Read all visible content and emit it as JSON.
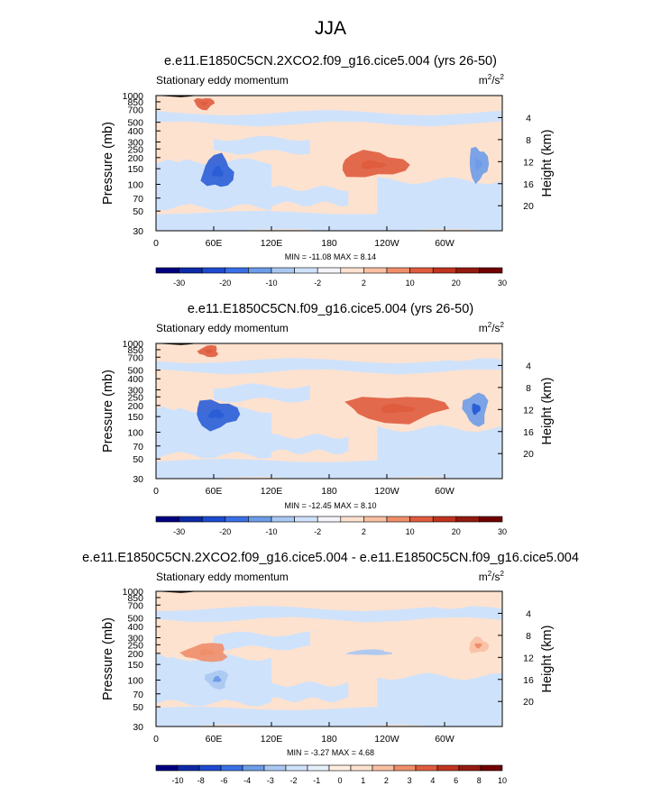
{
  "page_title": "JJA",
  "colors": {
    "light_blue": "#cfe2fb",
    "mid_blue": "#a9c8f2",
    "blue": "#6d9ce8",
    "dark_blue": "#2b5ed6",
    "light_orange": "#fde2cf",
    "mid_orange": "#f9c0a2",
    "orange": "#f08e6a",
    "dark_orange": "#e05c3e",
    "topography": "#000000"
  },
  "chart_data": [
    {
      "type": "heatmap",
      "title": "e.e11.E1850C5CN.2XCO2.f09_g16.cice5.004 (yrs 26-50)",
      "variable": "Stationary eddy momentum",
      "units": "m²/s²",
      "units_base": "m",
      "units_num_exp": "2",
      "units_mid": "/s",
      "units_den_exp": "2",
      "ylabel": "Pressure (mb)",
      "ylabel_right": "Height (km)",
      "x_ticks": [
        "0",
        "60E",
        "120E",
        "180",
        "120W",
        "60W"
      ],
      "x_tick_lon": [
        0,
        60,
        120,
        180,
        240,
        300
      ],
      "xlim": [
        0,
        360
      ],
      "y_ticks": [
        "30",
        "50",
        "70",
        "100",
        "150",
        "200",
        "250",
        "300",
        "400",
        "500",
        "700",
        "850",
        "1000"
      ],
      "y_tick_p": [
        30,
        50,
        70,
        100,
        150,
        200,
        250,
        300,
        400,
        500,
        700,
        850,
        1000
      ],
      "ylim_mb": [
        1000,
        30
      ],
      "height_ticks": [
        "4",
        "8",
        "12",
        "16",
        "20"
      ],
      "height_km": [
        4,
        8,
        12,
        16,
        20
      ],
      "min_max": "MIN = -11.08  MAX =  8.14",
      "min": -11.08,
      "max": 8.14,
      "colorbar_levels": [
        "-30",
        "-20",
        "-10",
        "-2",
        "2",
        "10",
        "20",
        "30"
      ],
      "colorbar_colors": [
        "#000080",
        "#0d2ba8",
        "#1d4bd0",
        "#3a70e6",
        "#6d9ce8",
        "#a9c8f2",
        "#cfe2fb",
        "#f4f4fa",
        "#fde2cf",
        "#f9c0a2",
        "#f08e6a",
        "#e05c3e",
        "#c0341f",
        "#941a10",
        "#700000"
      ],
      "features": [
        {
          "label": "negative lobe near 60E",
          "lon": [
            48,
            80
          ],
          "p": [
            90,
            210
          ],
          "value": -10
        },
        {
          "label": "positive lobe near 150W",
          "lon": [
            190,
            260
          ],
          "p": [
            120,
            230
          ],
          "value": 6
        },
        {
          "label": "negative lobe near 45W",
          "lon": [
            325,
            345
          ],
          "p": [
            110,
            260
          ],
          "value": -4
        },
        {
          "label": "positive surface lobe near 50E",
          "lon": [
            40,
            60
          ],
          "p": [
            700,
            950
          ],
          "value": 8
        }
      ]
    },
    {
      "type": "heatmap",
      "title": "e.e11.E1850C5CN.f09_g16.cice5.004 (yrs 26-50)",
      "variable": "Stationary eddy momentum",
      "units": "m²/s²",
      "units_base": "m",
      "units_num_exp": "2",
      "units_mid": "/s",
      "units_den_exp": "2",
      "ylabel": "Pressure (mb)",
      "ylabel_right": "Height (km)",
      "x_ticks": [
        "0",
        "60E",
        "120E",
        "180",
        "120W",
        "60W"
      ],
      "x_tick_lon": [
        0,
        60,
        120,
        180,
        240,
        300
      ],
      "xlim": [
        0,
        360
      ],
      "y_ticks": [
        "30",
        "50",
        "70",
        "100",
        "150",
        "200",
        "250",
        "300",
        "400",
        "500",
        "700",
        "850",
        "1000"
      ],
      "y_tick_p": [
        30,
        50,
        70,
        100,
        150,
        200,
        250,
        300,
        400,
        500,
        700,
        850,
        1000
      ],
      "ylim_mb": [
        1000,
        30
      ],
      "height_ticks": [
        "4",
        "8",
        "12",
        "16",
        "20"
      ],
      "height_km": [
        4,
        8,
        12,
        16,
        20
      ],
      "min_max": "MIN = -12.45  MAX =  8.10",
      "min": -12.45,
      "max": 8.1,
      "colorbar_levels": [
        "-30",
        "-20",
        "-10",
        "-2",
        "2",
        "10",
        "20",
        "30"
      ],
      "colorbar_colors": [
        "#000080",
        "#0d2ba8",
        "#1d4bd0",
        "#3a70e6",
        "#6d9ce8",
        "#a9c8f2",
        "#cfe2fb",
        "#f4f4fa",
        "#fde2cf",
        "#f9c0a2",
        "#f08e6a",
        "#e05c3e",
        "#c0341f",
        "#941a10",
        "#700000"
      ],
      "features": [
        {
          "label": "negative lobe near 60E",
          "lon": [
            40,
            85
          ],
          "p": [
            110,
            230
          ],
          "value": -12
        },
        {
          "label": "positive lobe near 130W",
          "lon": [
            200,
            300
          ],
          "p": [
            130,
            260
          ],
          "value": 6
        },
        {
          "label": "negative lobe near 50W",
          "lon": [
            320,
            345
          ],
          "p": [
            120,
            280
          ],
          "value": -5
        },
        {
          "label": "positive surface lobe near 55E",
          "lon": [
            45,
            65
          ],
          "p": [
            700,
            950
          ],
          "value": 8
        }
      ]
    },
    {
      "type": "heatmap",
      "title": "e.e11.E1850C5CN.2XCO2.f09_g16.cice5.004 - e.e11.E1850C5CN.f09_g16.cice5.004",
      "variable": "Stationary eddy momentum",
      "units": "m²/s²",
      "units_base": "m",
      "units_num_exp": "2",
      "units_mid": "/s",
      "units_den_exp": "2",
      "ylabel": "Pressure (mb)",
      "ylabel_right": "Height (km)",
      "x_ticks": [
        "0",
        "60E",
        "120E",
        "180",
        "120W",
        "60W"
      ],
      "x_tick_lon": [
        0,
        60,
        120,
        180,
        240,
        300
      ],
      "xlim": [
        0,
        360
      ],
      "y_ticks": [
        "30",
        "50",
        "70",
        "100",
        "150",
        "200",
        "250",
        "300",
        "400",
        "500",
        "700",
        "850",
        "1000"
      ],
      "y_tick_p": [
        30,
        50,
        70,
        100,
        150,
        200,
        250,
        300,
        400,
        500,
        700,
        850,
        1000
      ],
      "ylim_mb": [
        1000,
        30
      ],
      "height_ticks": [
        "4",
        "8",
        "12",
        "16",
        "20"
      ],
      "height_km": [
        4,
        8,
        12,
        16,
        20
      ],
      "min_max": "MIN = -3.27  MAX =  4.68",
      "min": -3.27,
      "max": 4.68,
      "colorbar_levels": [
        "-10",
        "-8",
        "-6",
        "-4",
        "-3",
        "-2",
        "-1",
        "0",
        "1",
        "2",
        "3",
        "4",
        "6",
        "8",
        "10"
      ],
      "colorbar_colors": [
        "#000080",
        "#0d2ba8",
        "#1d4bd0",
        "#3a70e6",
        "#6d9ce8",
        "#a9c8f2",
        "#cfe2fb",
        "#e6effc",
        "#fdeee2",
        "#fde2cf",
        "#f9c0a2",
        "#f08e6a",
        "#e05c3e",
        "#c0341f",
        "#941a10",
        "#700000"
      ],
      "features": [
        {
          "label": "negative lobe near 60E",
          "lon": [
            52,
            75
          ],
          "p": [
            80,
            130
          ],
          "value": -3
        },
        {
          "label": "positive lobe near 50E",
          "lon": [
            30,
            75
          ],
          "p": [
            160,
            260
          ],
          "value": 3
        },
        {
          "label": "negative lobe near 150W",
          "lon": [
            200,
            245
          ],
          "p": [
            190,
            220
          ],
          "value": -2
        },
        {
          "label": "positive lobe near 35W",
          "lon": [
            325,
            345
          ],
          "p": [
            200,
            300
          ],
          "value": 2
        }
      ]
    }
  ]
}
